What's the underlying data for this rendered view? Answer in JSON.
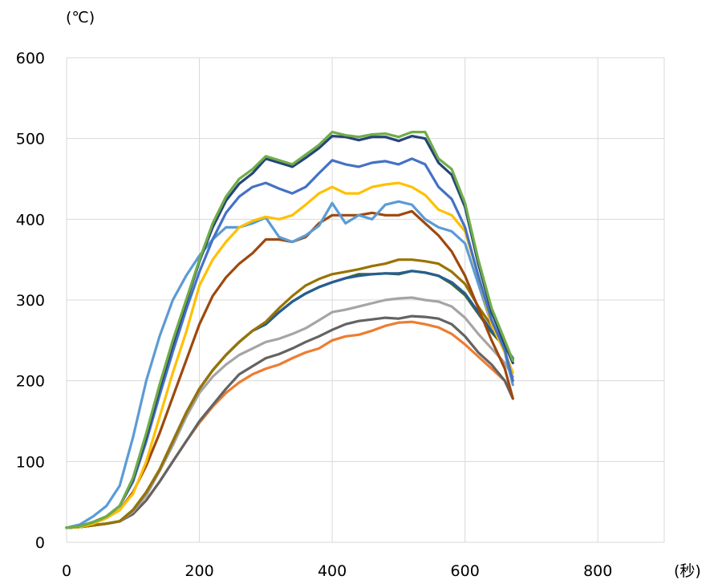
{
  "chart_data": {
    "type": "line",
    "title": "",
    "xlabel": "(秒)",
    "ylabel": "(℃)",
    "xlim": [
      0,
      900
    ],
    "ylim": [
      0,
      600
    ],
    "x_ticks": [
      "0",
      "200",
      "400",
      "600",
      "800"
    ],
    "y_ticks": [
      "0",
      "100",
      "200",
      "300",
      "400",
      "500",
      "600"
    ],
    "grid": true,
    "legend": "none",
    "x": [
      0,
      20,
      40,
      60,
      80,
      100,
      120,
      140,
      160,
      180,
      200,
      220,
      240,
      260,
      280,
      300,
      320,
      340,
      360,
      380,
      400,
      420,
      440,
      460,
      480,
      500,
      520,
      540,
      560,
      580,
      600,
      620,
      640,
      660,
      672
    ],
    "series": [
      {
        "color": "#70ad47",
        "values": [
          18,
          20,
          25,
          32,
          45,
          80,
          135,
          195,
          250,
          300,
          350,
          395,
          428,
          450,
          462,
          478,
          473,
          468,
          480,
          492,
          508,
          504,
          502,
          505,
          506,
          502,
          508,
          508,
          475,
          462,
          420,
          350,
          290,
          250,
          225
        ]
      },
      {
        "color": "#264478",
        "values": [
          18,
          20,
          25,
          32,
          45,
          78,
          130,
          190,
          245,
          297,
          348,
          390,
          423,
          444,
          457,
          475,
          470,
          465,
          476,
          488,
          503,
          502,
          498,
          502,
          502,
          497,
          503,
          500,
          470,
          455,
          415,
          345,
          285,
          245,
          222
        ]
      },
      {
        "color": "#4472c4",
        "values": [
          18,
          20,
          25,
          32,
          45,
          75,
          125,
          182,
          236,
          288,
          335,
          375,
          408,
          428,
          440,
          445,
          438,
          432,
          440,
          457,
          473,
          468,
          465,
          470,
          472,
          468,
          475,
          468,
          440,
          425,
          390,
          330,
          275,
          238,
          200
        ]
      },
      {
        "color": "#ffc000",
        "values": [
          18,
          19,
          23,
          30,
          40,
          60,
          100,
          155,
          210,
          260,
          318,
          350,
          372,
          390,
          398,
          403,
          400,
          405,
          418,
          432,
          440,
          432,
          432,
          440,
          443,
          445,
          440,
          430,
          412,
          405,
          385,
          330,
          270,
          235,
          210
        ]
      },
      {
        "color": "#5b9bd5",
        "values": [
          18,
          22,
          32,
          45,
          70,
          130,
          200,
          255,
          300,
          330,
          355,
          375,
          390,
          390,
          395,
          402,
          378,
          372,
          380,
          392,
          420,
          395,
          405,
          400,
          418,
          422,
          418,
          400,
          390,
          385,
          370,
          320,
          270,
          235,
          195
        ]
      },
      {
        "color": "#9e480e",
        "values": [
          18,
          19,
          23,
          30,
          40,
          62,
          95,
          135,
          180,
          225,
          270,
          305,
          328,
          345,
          358,
          375,
          375,
          372,
          378,
          395,
          405,
          405,
          405,
          408,
          405,
          405,
          410,
          395,
          380,
          360,
          330,
          290,
          250,
          215,
          178
        ]
      },
      {
        "color": "#997300",
        "values": [
          18,
          19,
          21,
          23,
          26,
          40,
          62,
          90,
          125,
          160,
          190,
          213,
          232,
          248,
          262,
          273,
          290,
          305,
          318,
          326,
          332,
          335,
          338,
          342,
          345,
          350,
          350,
          348,
          345,
          335,
          320,
          292,
          268,
          245,
          225
        ]
      },
      {
        "color": "#255e91",
        "values": [
          18,
          19,
          21,
          23,
          26,
          40,
          62,
          90,
          125,
          160,
          190,
          213,
          232,
          248,
          262,
          270,
          285,
          298,
          308,
          316,
          322,
          327,
          330,
          332,
          333,
          333,
          336,
          334,
          330,
          322,
          308,
          285,
          262,
          243,
          228
        ]
      },
      {
        "color": "#43682b",
        "values": [
          18,
          19,
          21,
          23,
          26,
          40,
          62,
          90,
          125,
          160,
          190,
          213,
          232,
          248,
          262,
          270,
          285,
          298,
          308,
          316,
          322,
          327,
          332,
          332,
          333,
          332,
          336,
          334,
          330,
          320,
          306,
          283,
          260,
          242,
          226
        ]
      },
      {
        "color": "#a5a5a5",
        "values": [
          18,
          19,
          21,
          23,
          26,
          38,
          58,
          88,
          120,
          155,
          185,
          205,
          220,
          232,
          240,
          248,
          252,
          258,
          265,
          275,
          285,
          288,
          292,
          296,
          300,
          302,
          303,
          300,
          298,
          292,
          278,
          258,
          240,
          222,
          205
        ]
      },
      {
        "color": "#636363",
        "values": [
          18,
          19,
          21,
          23,
          26,
          35,
          52,
          75,
          100,
          125,
          150,
          170,
          190,
          208,
          218,
          228,
          233,
          240,
          248,
          255,
          263,
          270,
          274,
          276,
          278,
          277,
          280,
          279,
          277,
          270,
          255,
          235,
          220,
          200,
          178
        ]
      },
      {
        "color": "#ed7d31",
        "values": [
          18,
          19,
          21,
          23,
          26,
          35,
          52,
          75,
          100,
          125,
          148,
          168,
          185,
          198,
          208,
          215,
          220,
          228,
          235,
          240,
          250,
          255,
          257,
          262,
          268,
          272,
          273,
          270,
          266,
          258,
          245,
          230,
          215,
          200,
          178
        ]
      }
    ]
  }
}
